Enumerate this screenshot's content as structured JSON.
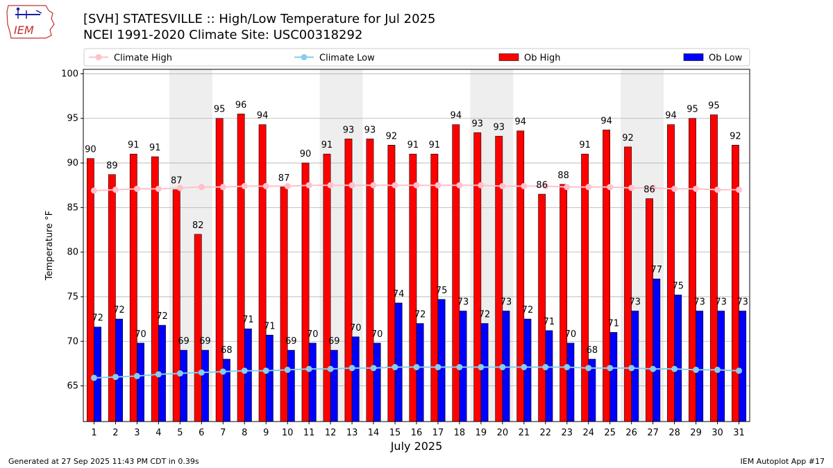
{
  "title_line1": "[SVH] STATESVILLE :: High/Low Temperature for Jul 2025",
  "title_line2": "NCEI 1991-2020 Climate Site: USC00318292",
  "logo_text": "IEM",
  "footer_left": "Generated at 27 Sep 2025 11:43 PM CDT in 0.39s",
  "footer_right": "IEM Autoplot App #17",
  "colors": {
    "ob_high": "#ff0000",
    "ob_low": "#0000ff",
    "climate_high": "#ffc0cb",
    "climate_low": "#87ceeb",
    "weekend_shade": "#eeeeee",
    "grid": "#b0b0b0"
  },
  "chart_data": {
    "type": "bar",
    "xlabel": "July 2025",
    "ylabel": "Temperature °F",
    "ylim": [
      61,
      100.5
    ],
    "yticks": [
      65,
      70,
      75,
      80,
      85,
      90,
      95,
      100
    ],
    "grid": "horizontal",
    "legend_position": "top",
    "categories": [
      "1",
      "2",
      "3",
      "4",
      "5",
      "6",
      "7",
      "8",
      "9",
      "10",
      "11",
      "12",
      "13",
      "14",
      "15",
      "16",
      "17",
      "18",
      "19",
      "20",
      "21",
      "22",
      "23",
      "24",
      "25",
      "26",
      "27",
      "28",
      "29",
      "30",
      "31"
    ],
    "shaded_categories": [
      "5",
      "6",
      "12",
      "13",
      "19",
      "20",
      "26",
      "27"
    ],
    "series": [
      {
        "name": "Ob High",
        "kind": "bar",
        "values": [
          90.5,
          88.7,
          91.0,
          90.7,
          87.0,
          82.0,
          95.0,
          95.5,
          94.3,
          87.3,
          90.0,
          91.0,
          92.7,
          92.7,
          92.0,
          91.0,
          91.0,
          94.3,
          93.4,
          93.0,
          93.6,
          86.5,
          87.6,
          91.0,
          93.7,
          91.8,
          86.0,
          94.3,
          95.0,
          95.4,
          92.0
        ],
        "labels": [
          "90",
          "89",
          "91",
          "91",
          "87",
          "82",
          "95",
          "96",
          "94",
          "87",
          "90",
          "91",
          "93",
          "93",
          "92",
          "91",
          "91",
          "94",
          "93",
          "93",
          "94",
          "86",
          "88",
          "91",
          "94",
          "92",
          "86",
          "94",
          "95",
          "95",
          "92"
        ]
      },
      {
        "name": "Ob Low",
        "kind": "bar",
        "values": [
          71.6,
          72.5,
          69.8,
          71.8,
          69.0,
          69.0,
          68.0,
          71.4,
          70.7,
          69.0,
          69.8,
          69.0,
          70.5,
          69.8,
          74.3,
          72.0,
          74.7,
          73.4,
          72.0,
          73.4,
          72.5,
          71.2,
          69.8,
          68.0,
          71.0,
          73.4,
          77.0,
          75.2,
          73.4,
          73.4,
          73.4
        ],
        "labels": [
          "72",
          "72",
          "70",
          "72",
          "69",
          "69",
          "68",
          "71",
          "71",
          "69",
          "70",
          "69",
          "70",
          "70",
          "74",
          "72",
          "75",
          "73",
          "72",
          "73",
          "72",
          "71",
          "70",
          "68",
          "71",
          "73",
          "77",
          "75",
          "73",
          "73",
          "73"
        ]
      },
      {
        "name": "Climate High",
        "kind": "line",
        "values": [
          86.9,
          87.0,
          87.1,
          87.1,
          87.2,
          87.3,
          87.3,
          87.4,
          87.4,
          87.4,
          87.5,
          87.5,
          87.5,
          87.5,
          87.5,
          87.5,
          87.5,
          87.5,
          87.5,
          87.4,
          87.4,
          87.4,
          87.3,
          87.3,
          87.3,
          87.2,
          87.2,
          87.1,
          87.1,
          87.0,
          87.0
        ]
      },
      {
        "name": "Climate Low",
        "kind": "line",
        "values": [
          65.9,
          66.0,
          66.1,
          66.3,
          66.4,
          66.5,
          66.6,
          66.7,
          66.7,
          66.8,
          66.9,
          66.9,
          67.0,
          67.0,
          67.1,
          67.1,
          67.1,
          67.1,
          67.1,
          67.1,
          67.1,
          67.1,
          67.1,
          67.0,
          67.0,
          67.0,
          66.9,
          66.9,
          66.8,
          66.8,
          66.7
        ]
      }
    ],
    "legend": [
      "Climate High",
      "Climate Low",
      "Ob High",
      "Ob Low"
    ]
  }
}
